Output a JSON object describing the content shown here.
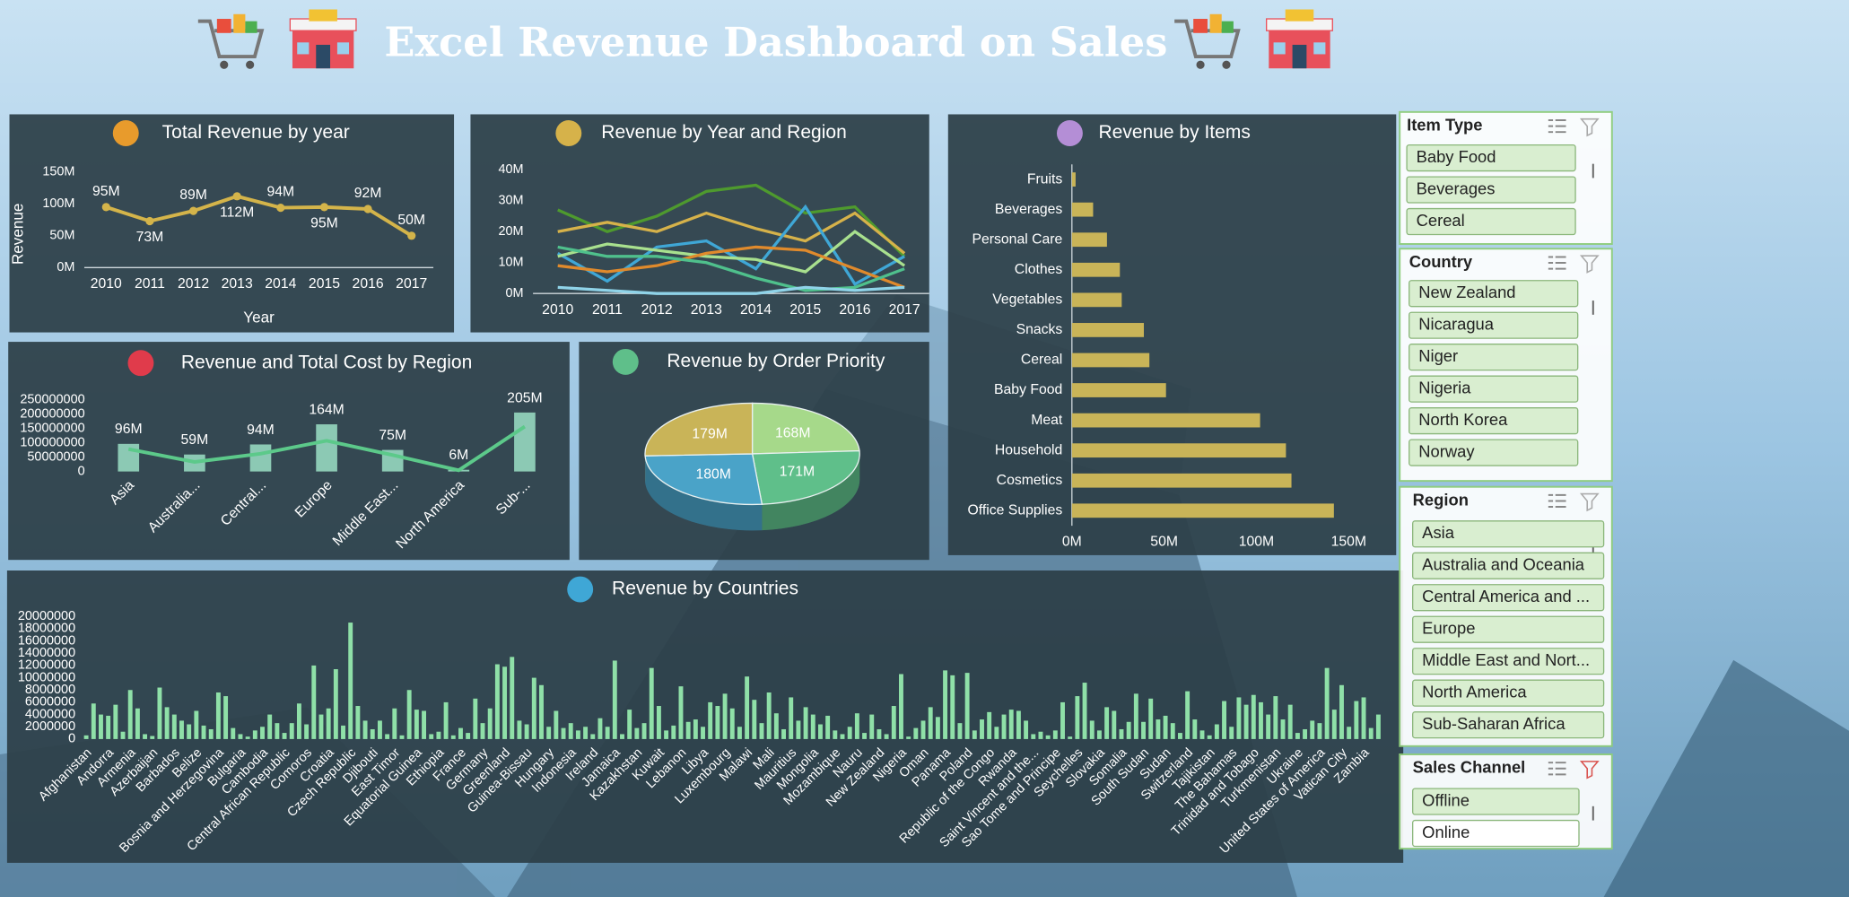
{
  "header": {
    "title": "Excel Revenue Dashboard on Sales"
  },
  "chart_data": [
    {
      "type": "line",
      "title": "Total Revenue by year",
      "x_label": "Year",
      "y_label": "Revenue",
      "categories": [
        "2010",
        "2011",
        "2012",
        "2013",
        "2014",
        "2015",
        "2016",
        "2017"
      ],
      "values": [
        95,
        73,
        89,
        112,
        94,
        95,
        92,
        50
      ],
      "value_labels": [
        "95M",
        "73M",
        "89M",
        "112M",
        "94M",
        "95M",
        "92M",
        "50M"
      ],
      "color": "#d4b44a",
      "ylim": [
        0,
        150
      ],
      "yticks": [
        {
          "value": 0,
          "label": "0M"
        },
        {
          "value": 50,
          "label": "50M"
        },
        {
          "value": 100,
          "label": "100M"
        },
        {
          "value": 150,
          "label": "150M"
        }
      ]
    },
    {
      "type": "multiline",
      "title": "Revenue by Year and Region",
      "categories": [
        "2010",
        "2011",
        "2012",
        "2013",
        "2014",
        "2015",
        "2016",
        "2017"
      ],
      "series": [
        {
          "color": "#4e9a2e",
          "values": [
            27,
            20,
            25,
            33,
            35,
            26,
            28,
            12
          ]
        },
        {
          "color": "#d6b24a",
          "values": [
            20,
            23,
            20,
            26,
            21,
            17,
            26,
            13
          ]
        },
        {
          "color": "#3fa7d6",
          "values": [
            13,
            4,
            15,
            17,
            8,
            28,
            3,
            12
          ]
        },
        {
          "color": "#a8e08e",
          "values": [
            12,
            16,
            14,
            12,
            11,
            7,
            20,
            9
          ]
        },
        {
          "color": "#e08a2c",
          "values": [
            9,
            7,
            9,
            13,
            15,
            14,
            8,
            2
          ]
        },
        {
          "color": "#4fc08c",
          "values": [
            15,
            12,
            12,
            10,
            5,
            1,
            2,
            8
          ]
        },
        {
          "color": "#8fd3e8",
          "values": [
            2,
            1,
            0,
            0,
            0,
            2,
            1,
            2
          ]
        }
      ],
      "ylim": [
        0,
        40
      ],
      "yticks": [
        {
          "value": 0,
          "label": "0M"
        },
        {
          "value": 10,
          "label": "10M"
        },
        {
          "value": 20,
          "label": "20M"
        },
        {
          "value": 30,
          "label": "30M"
        },
        {
          "value": 40,
          "label": "40M"
        }
      ]
    },
    {
      "type": "hbar",
      "title": "Revenue by Items",
      "categories": [
        "Fruits",
        "Beverages",
        "Personal Care",
        "Clothes",
        "Vegetables",
        "Snacks",
        "Cereal",
        "Baby Food",
        "Meat",
        "Household",
        "Cosmetics",
        "Office Supplies"
      ],
      "values": [
        2,
        11.5,
        19,
        26,
        27,
        39,
        42,
        51,
        102,
        116,
        119,
        142
      ],
      "color": "#c9b458",
      "xlim": [
        0,
        170
      ],
      "xticks": [
        {
          "value": 0,
          "label": "0M"
        },
        {
          "value": 50,
          "label": "50M"
        },
        {
          "value": 100,
          "label": "100M"
        },
        {
          "value": 150,
          "label": "150M"
        }
      ]
    },
    {
      "type": "combo",
      "title": "Revenue and Total Cost by Region",
      "categories": [
        "Asia",
        "Australia...",
        "Central...",
        "Europe",
        "Middle East...",
        "North America",
        "Sub-..."
      ],
      "series": [
        {
          "type": "bar",
          "color": "#8cc9b4",
          "values": [
            96000000,
            59000000,
            94000000,
            164000000,
            75000000,
            6000000,
            205000000
          ],
          "value_labels": [
            "96M",
            "59M",
            "94M",
            "164M",
            "75M",
            "6M",
            "205M"
          ]
        },
        {
          "type": "line",
          "color": "#5cc98a",
          "values": [
            78000000,
            33000000,
            62000000,
            107000000,
            57000000,
            4000000,
            156000000
          ]
        }
      ],
      "ylim": [
        0,
        250000000
      ],
      "yticks": [
        0,
        50000000,
        100000000,
        150000000,
        200000000,
        250000000
      ]
    },
    {
      "type": "pie",
      "title": "Revenue by Order Priority",
      "values": [
        168,
        171,
        180,
        179
      ],
      "value_labels": [
        "168M",
        "171M",
        "180M",
        "179M"
      ],
      "colors": [
        "#a6d98a",
        "#5fbf8a",
        "#4aa3c8",
        "#c9b458"
      ]
    },
    {
      "type": "bar",
      "title": "Revenue by Countries",
      "categories": [
        "Afghanistan",
        null,
        null,
        "Andorra",
        null,
        null,
        "Armenia",
        null,
        null,
        "Azerbaijan",
        null,
        null,
        "Barbados",
        null,
        null,
        "Belize",
        null,
        null,
        "Bosnia and Herzegovina",
        null,
        null,
        "Bulgaria",
        null,
        null,
        "Cambodia",
        null,
        null,
        "Central African Republic",
        null,
        null,
        "Comoros",
        null,
        null,
        "Croatia",
        null,
        null,
        "Czech Republic",
        null,
        null,
        "Djibouti",
        null,
        null,
        "East Timor",
        null,
        null,
        "Equatorial Guinea",
        null,
        null,
        "Ethiopia",
        null,
        null,
        "France",
        null,
        null,
        "Germany",
        null,
        null,
        "Greenland",
        null,
        null,
        "Guinea-Bissau",
        null,
        null,
        "Hungary",
        null,
        null,
        "Indonesia",
        null,
        null,
        "Ireland",
        null,
        null,
        "Jamaica",
        null,
        null,
        "Kazakhstan",
        null,
        null,
        "Kuwait",
        null,
        null,
        "Lebanon",
        null,
        null,
        "Libya",
        null,
        null,
        "Luxembourg",
        null,
        null,
        "Malawi",
        null,
        null,
        "Mali",
        null,
        null,
        "Mauritius",
        null,
        null,
        "Mongolia",
        null,
        null,
        "Mozambique",
        null,
        null,
        "Nauru",
        null,
        null,
        "New Zealand",
        null,
        null,
        "Nigeria",
        null,
        null,
        "Oman",
        null,
        null,
        "Panama",
        null,
        null,
        "Poland",
        null,
        null,
        "Republic of the Congo",
        null,
        null,
        "Rwanda",
        null,
        null,
        "Saint Vincent and the...",
        null,
        null,
        "Sao Tome and Principe",
        null,
        null,
        "Seychelles",
        null,
        null,
        "Slovakia",
        null,
        null,
        "Somalia",
        null,
        null,
        "South Sudan",
        null,
        null,
        "Sudan",
        null,
        null,
        "Switzerland",
        null,
        null,
        "Tajikistan",
        null,
        null,
        "The Bahamas",
        null,
        null,
        "Trinidad and Tobago",
        null,
        null,
        "Turkmenistan",
        null,
        null,
        "Ukraine",
        null,
        null,
        "United States of America",
        null,
        null,
        "Vatican City",
        null,
        null,
        "Zambia",
        null,
        null
      ],
      "values": [
        600000,
        5800000,
        4000000,
        3800000,
        5600000,
        1200000,
        8000000,
        5000000,
        800000,
        500000,
        8400000,
        5200000,
        4000000,
        3000000,
        2400000,
        4600000,
        2200000,
        1600000,
        7600000,
        7000000,
        1800000,
        800000,
        400000,
        1400000,
        2000000,
        4000000,
        2600000,
        1000000,
        2600000,
        5800000,
        2400000,
        12000000,
        4000000,
        5000000,
        11400000,
        2200000,
        19000000,
        5400000,
        3000000,
        1600000,
        3000000,
        800000,
        5000000,
        600000,
        8000000,
        4800000,
        4600000,
        800000,
        1200000,
        6000000,
        600000,
        1800000,
        1000000,
        6600000,
        2600000,
        5000000,
        12200000,
        11800000,
        13400000,
        3000000,
        2400000,
        10000000,
        8800000,
        2000000,
        4600000,
        1800000,
        2600000,
        1400000,
        2000000,
        800000,
        3400000,
        2000000,
        12800000,
        800000,
        4800000,
        1800000,
        2600000,
        11600000,
        5400000,
        1400000,
        2200000,
        8600000,
        2800000,
        3200000,
        2000000,
        6000000,
        5400000,
        7400000,
        5000000,
        2000000,
        10200000,
        6400000,
        2600000,
        7600000,
        4200000,
        1600000,
        6800000,
        3000000,
        5200000,
        4000000,
        2400000,
        3800000,
        1400000,
        800000,
        2000000,
        4200000,
        1000000,
        4000000,
        1600000,
        800000,
        5400000,
        10600000,
        400000,
        1800000,
        3000000,
        5200000,
        3600000,
        11200000,
        10400000,
        2600000,
        10800000,
        1400000,
        3200000,
        4400000,
        2000000,
        4000000,
        4800000,
        4600000,
        3000000,
        800000,
        1200000,
        600000,
        1400000,
        6000000,
        400000,
        7000000,
        9200000,
        3000000,
        1400000,
        5200000,
        4600000,
        1600000,
        2800000,
        7400000,
        2800000,
        6600000,
        3200000,
        3800000,
        2600000,
        1000000,
        7800000,
        3200000,
        1400000,
        600000,
        2400000,
        6200000,
        2000000,
        6800000,
        5600000,
        7200000,
        6000000,
        4000000,
        7000000,
        3200000,
        5600000,
        1000000,
        1600000,
        3000000,
        2600000,
        11600000,
        4800000,
        8800000,
        2000000,
        6200000,
        6800000,
        1800000,
        4000000
      ],
      "color": "#8fe0a8",
      "ylim": [
        0,
        20000000
      ],
      "yticks": [
        0,
        2000000,
        4000000,
        6000000,
        8000000,
        10000000,
        12000000,
        14000000,
        16000000,
        18000000,
        20000000
      ]
    }
  ],
  "slicers": [
    {
      "title": "Item Type",
      "items": [
        "Baby Food",
        "Beverages",
        "Cereal"
      ]
    },
    {
      "title": "Country",
      "items": [
        "New Zealand",
        "Nicaragua",
        "Niger",
        "Nigeria",
        "North Korea",
        "Norway"
      ]
    },
    {
      "title": "Region",
      "items": [
        "Asia",
        "Australia and Oceania",
        "Central America and ...",
        "Europe",
        "Middle East and Nort...",
        "North America",
        "Sub-Saharan Africa"
      ]
    },
    {
      "title": "Sales Channel",
      "items": [
        "Offline",
        "Online"
      ]
    }
  ]
}
